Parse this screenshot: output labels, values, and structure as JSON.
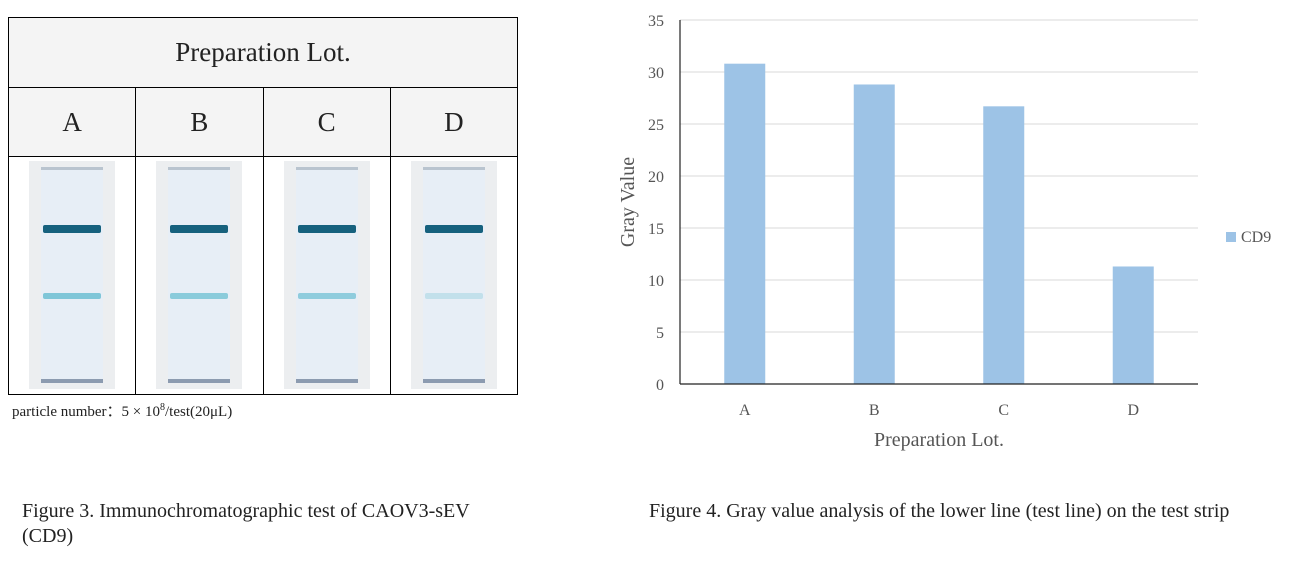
{
  "table": {
    "header": "Preparation Lot.",
    "columns": [
      "A",
      "B",
      "C",
      "D"
    ],
    "note_prefix": "particle number：5 × 10",
    "note_sup": "8",
    "note_suffix": "/test(20μL)"
  },
  "captions": {
    "fig3": "Figure 3. Immunochromatographic test of CAOV3-sEV (CD9)",
    "fig4": "Figure 4. Gray value analysis of the lower line (test line) on the test strip"
  },
  "colors": {
    "bar": "#9dc3e6",
    "control_line": "#16617e",
    "test_line": "#7fc6d8"
  },
  "chart_data": {
    "type": "bar",
    "categories": [
      "A",
      "B",
      "C",
      "D"
    ],
    "series": [
      {
        "name": "CD9",
        "values": [
          30.8,
          28.8,
          26.7,
          11.3
        ]
      }
    ],
    "xlabel": "Preparation Lot.",
    "ylabel": "Gray Value",
    "ylim": [
      0,
      35
    ],
    "yticks": [
      "0",
      "5",
      "10",
      "15",
      "20",
      "25",
      "30",
      "35"
    ],
    "grid": true,
    "legend": "right"
  }
}
